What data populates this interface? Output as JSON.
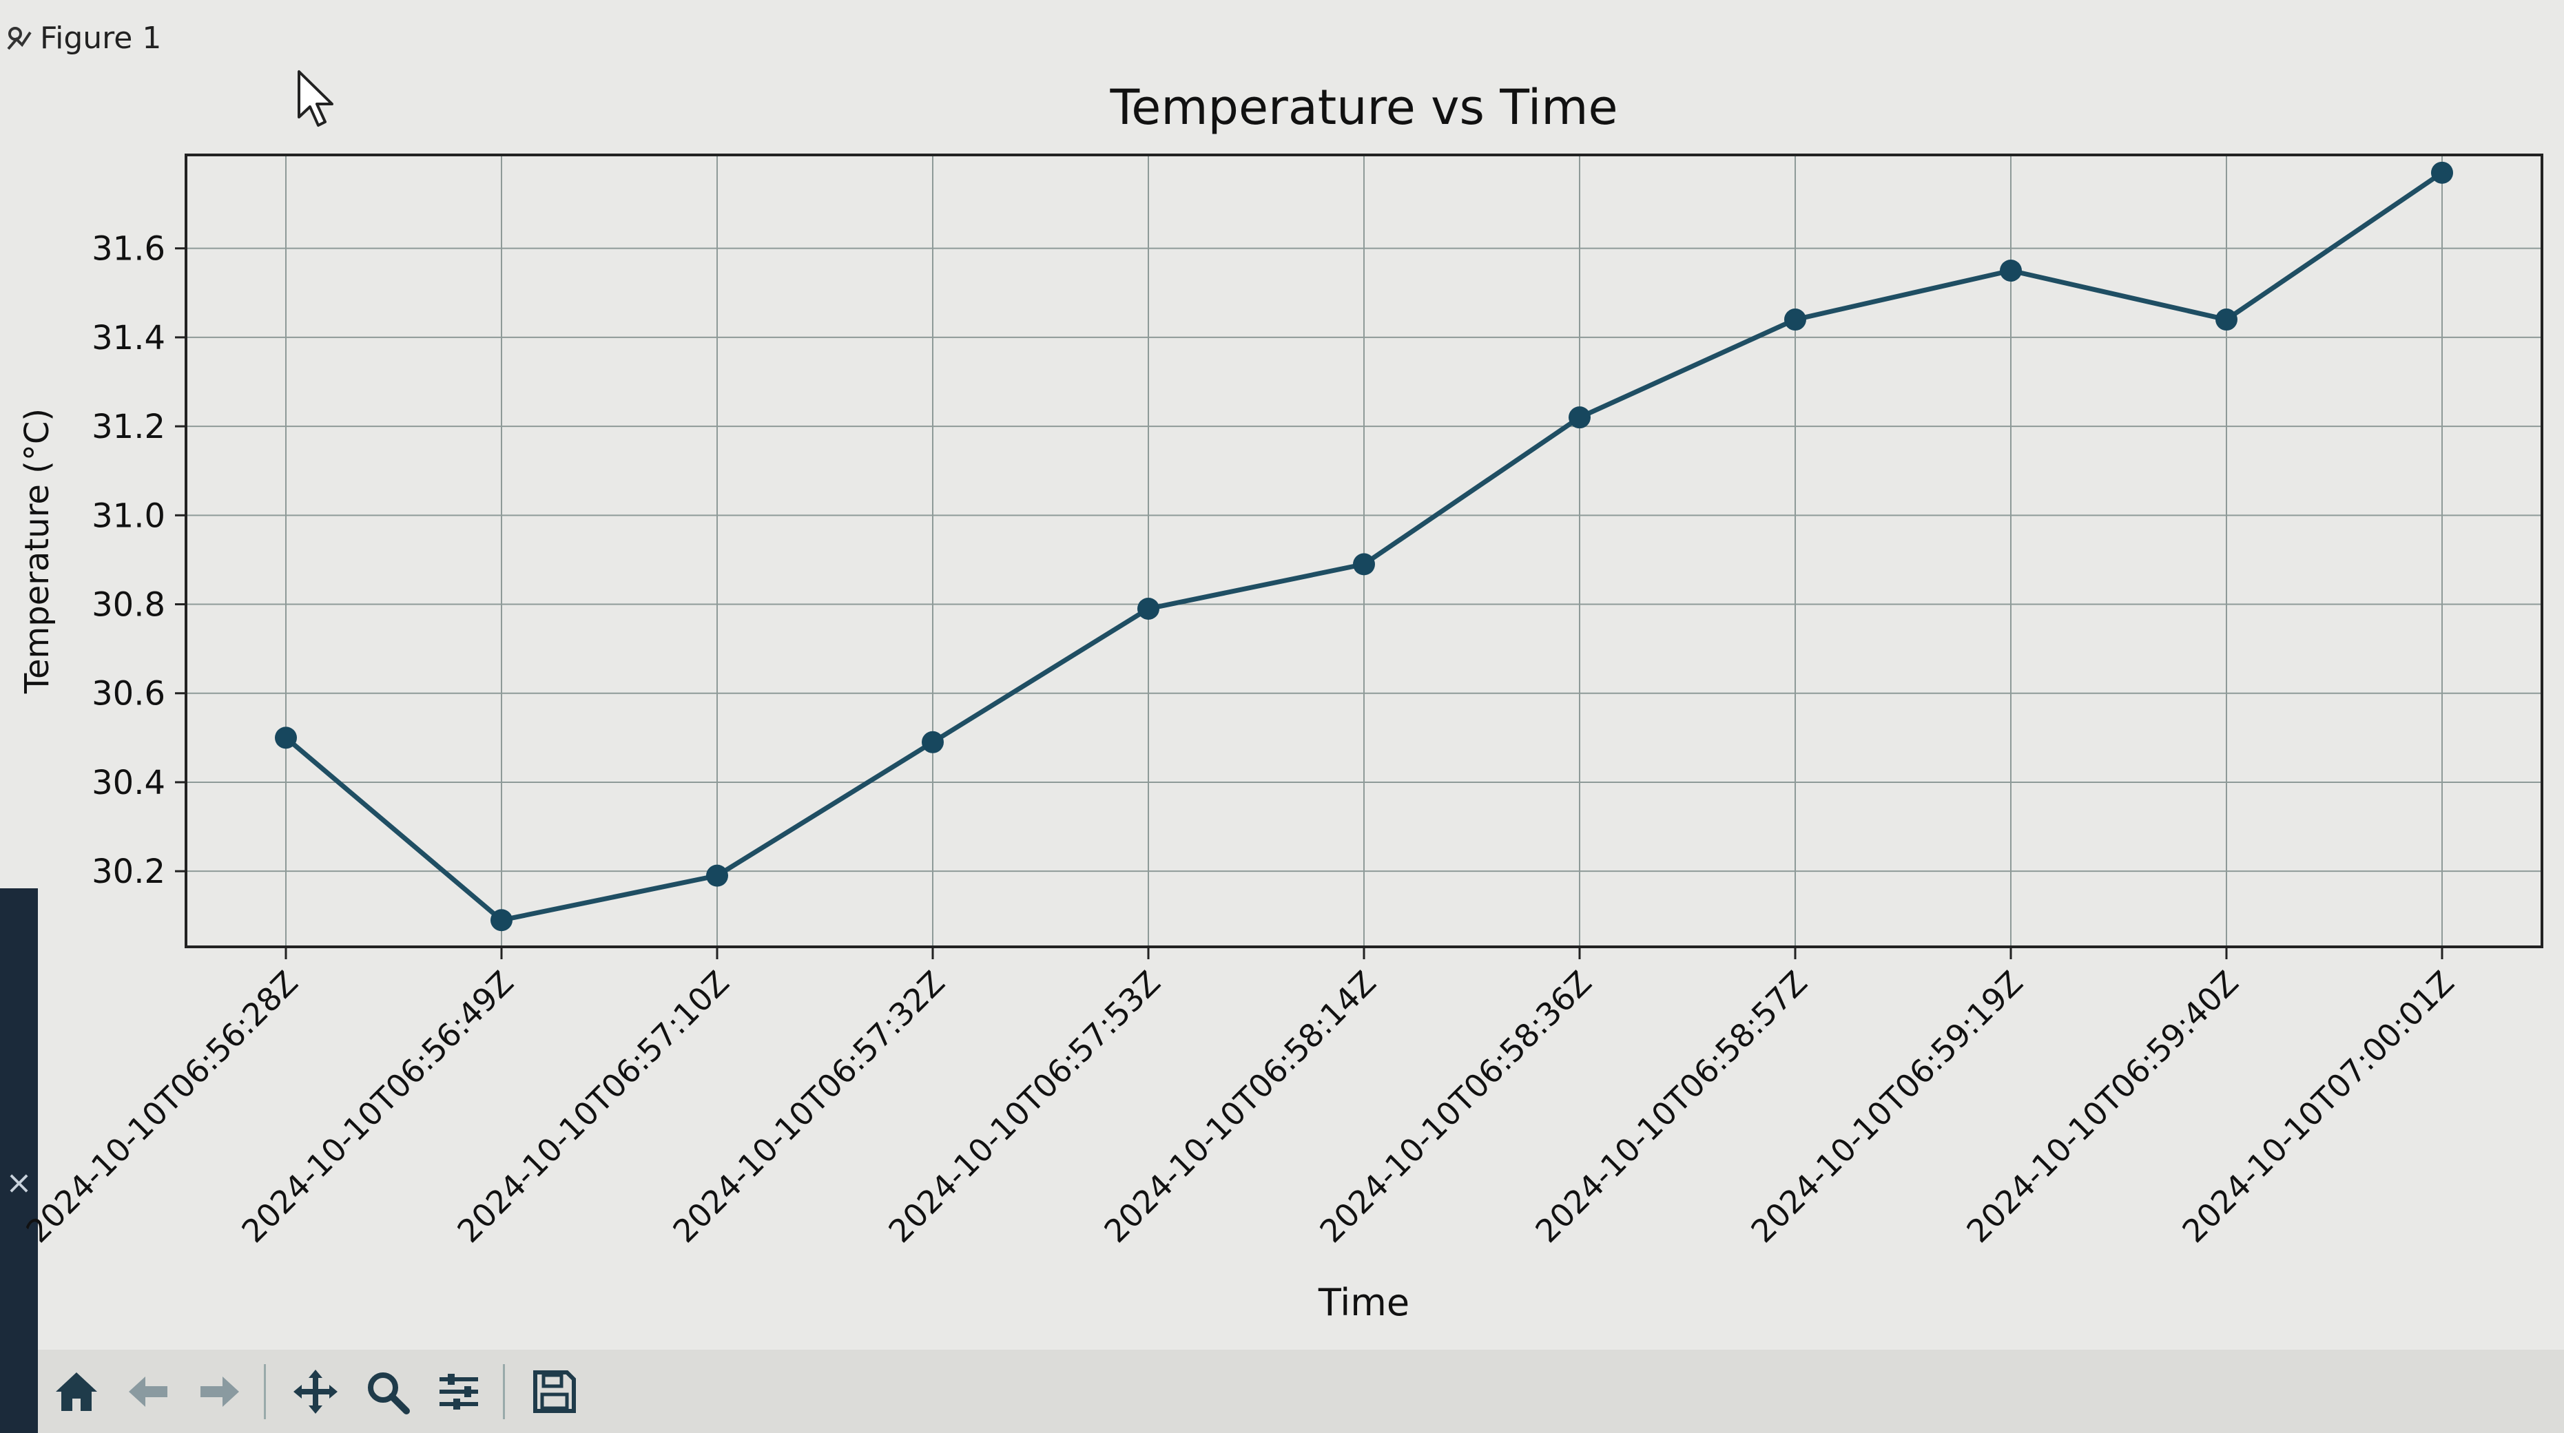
{
  "window": {
    "title": "Figure 1"
  },
  "toolbar": {
    "buttons": [
      {
        "icon": "home-icon"
      },
      {
        "icon": "back-arrow-icon"
      },
      {
        "icon": "forward-arrow-icon"
      },
      {
        "icon": "pan-icon"
      },
      {
        "icon": "zoom-icon"
      },
      {
        "icon": "configure-subplots-icon"
      },
      {
        "icon": "save-icon"
      }
    ]
  },
  "colors": {
    "line": "#1f4e63",
    "marker": "#17475e",
    "grid": "#8e9a98",
    "background": "#e9e9e7"
  },
  "chart_data": {
    "type": "line",
    "title": "Temperature vs Time",
    "xlabel": "Time",
    "ylabel": "Temperature (°C)",
    "categories": [
      "2024-10-10T06:56:28Z",
      "2024-10-10T06:56:49Z",
      "2024-10-10T06:57:10Z",
      "2024-10-10T06:57:32Z",
      "2024-10-10T06:57:53Z",
      "2024-10-10T06:58:14Z",
      "2024-10-10T06:58:36Z",
      "2024-10-10T06:58:57Z",
      "2024-10-10T06:59:19Z",
      "2024-10-10T06:59:40Z",
      "2024-10-10T07:00:01Z"
    ],
    "series": [
      {
        "values": [
          30.5,
          30.09,
          30.19,
          30.49,
          30.79,
          30.89,
          31.22,
          31.44,
          31.55,
          31.44,
          31.77
        ]
      }
    ],
    "yticks": [
      30.2,
      30.4,
      30.6,
      30.8,
      31.0,
      31.2,
      31.4,
      31.6
    ],
    "ytick_labels": [
      "30.2",
      "30.4",
      "30.6",
      "30.8",
      "31.0",
      "31.2",
      "31.4",
      "31.6"
    ],
    "ylim": [
      30.03,
      31.81
    ],
    "grid": true,
    "marker": "circle"
  }
}
